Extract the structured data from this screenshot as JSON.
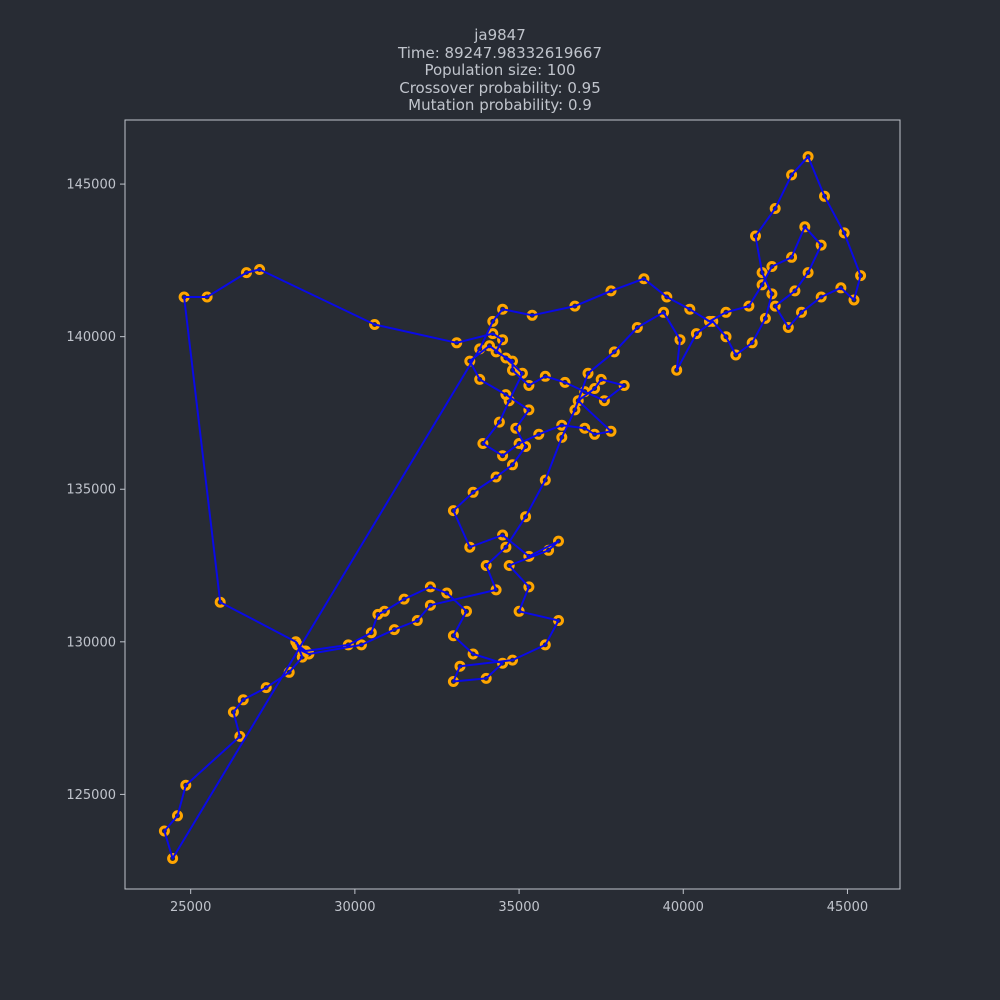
{
  "chart_data": {
    "type": "line",
    "title_lines": [
      "ja9847",
      "Time: 89247.98332619667",
      "Population size: 100",
      "Crossover probability: 0.95",
      "Mutation probability: 0.9"
    ],
    "xlabel": "",
    "ylabel": "",
    "xlim": [
      23000,
      46600
    ],
    "ylim": [
      121900,
      147100
    ],
    "x_ticks": [
      25000,
      30000,
      35000,
      40000,
      45000
    ],
    "y_ticks": [
      125000,
      130000,
      135000,
      140000,
      145000
    ],
    "grid": false,
    "colors": {
      "background": "#282c34",
      "route": "#0a0ae6",
      "cities": "#ffa500",
      "axes": "#c0c4cc"
    },
    "series": [
      {
        "x": [
          24450,
          24200,
          24600,
          24850,
          26500,
          26300,
          26600,
          27300,
          28000,
          28400,
          28250,
          28500,
          29800,
          30500,
          30700,
          30900,
          31500,
          32300,
          32800,
          33400,
          33000,
          33600,
          34500,
          34000,
          33000,
          33200,
          34800,
          35800,
          36200,
          35000,
          35300,
          34700,
          35900,
          36200,
          35300,
          34500,
          33500,
          33000,
          33600,
          34300,
          34800,
          35200,
          34900,
          35300,
          34600,
          33800,
          33500,
          34100,
          34600,
          35100,
          34700,
          34400,
          33900,
          34500,
          35000,
          35600,
          36300,
          37000,
          37300,
          37800,
          36800,
          37300,
          37500,
          38200,
          37600,
          37000,
          36400,
          35800,
          35300,
          34800,
          34800,
          34300,
          34500,
          34200,
          33100,
          30600,
          27100,
          26700,
          25500,
          24800,
          25900,
          28200,
          28400,
          28600,
          30200,
          31200,
          31900,
          32300,
          34300,
          34000,
          34600,
          35200,
          35800,
          36300,
          36700,
          37100,
          37900,
          38600,
          39400,
          39900,
          39800,
          40400,
          40900,
          41300,
          41600,
          42100,
          42500,
          42700,
          42400,
          42200,
          42800,
          43300,
          43800,
          44300,
          44900,
          45400,
          45200,
          44800,
          44200,
          43600,
          43200,
          42800,
          43400,
          43800,
          44200,
          43700,
          43300,
          42700,
          42400,
          42000,
          41300,
          40800,
          40200,
          39500,
          38800,
          37800,
          36700,
          35400,
          34500,
          34200,
          33800
        ],
        "y": [
          122900,
          123800,
          124300,
          125300,
          126900,
          127700,
          128100,
          128500,
          129000,
          129500,
          129900,
          129700,
          129900,
          130300,
          130900,
          131000,
          131400,
          131800,
          131600,
          131000,
          130200,
          129600,
          129300,
          128800,
          128700,
          129200,
          129400,
          129900,
          130700,
          131000,
          131800,
          132500,
          133000,
          133300,
          132800,
          133500,
          133100,
          134300,
          134900,
          135400,
          135800,
          136400,
          137000,
          137600,
          138100,
          138600,
          139200,
          139700,
          139300,
          138800,
          137900,
          137200,
          136500,
          136100,
          136500,
          136800,
          137100,
          137000,
          136800,
          136900,
          137900,
          138300,
          138600,
          138400,
          137900,
          138200,
          138500,
          138700,
          138400,
          138900,
          139200,
          139500,
          139900,
          140100,
          139800,
          140400,
          142200,
          142100,
          141300,
          141300,
          131300,
          130000,
          129700,
          129600,
          129900,
          130400,
          130700,
          131200,
          131700,
          132500,
          133100,
          134100,
          135300,
          136700,
          137600,
          138800,
          139500,
          140300,
          140800,
          139900,
          138900,
          140100,
          140500,
          140000,
          139400,
          139800,
          140600,
          141400,
          142100,
          143300,
          144200,
          145300,
          145900,
          144600,
          143400,
          142000,
          141200,
          141600,
          141300,
          140800,
          140300,
          141000,
          141500,
          142100,
          143000,
          143600,
          142600,
          142300,
          141700,
          141000,
          140800,
          140500,
          140900,
          141300,
          141900,
          141500,
          141000,
          140700,
          140900,
          140500,
          139600
        ]
      }
    ]
  }
}
